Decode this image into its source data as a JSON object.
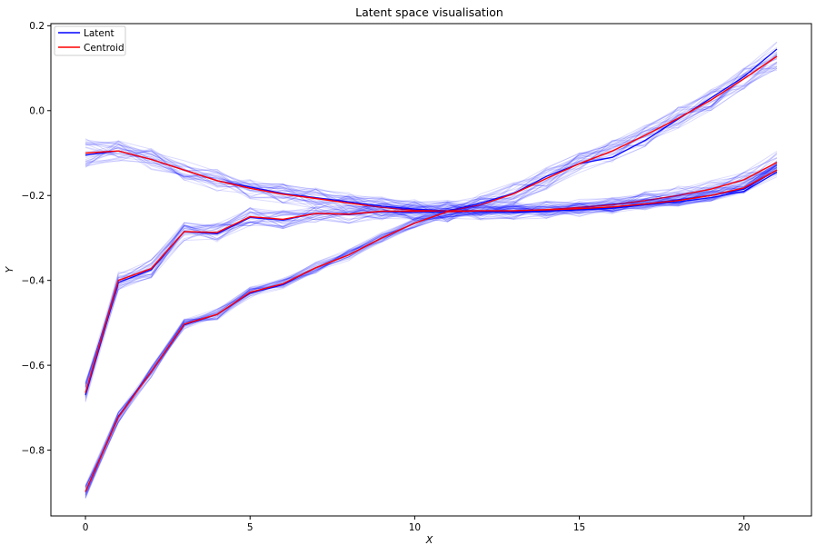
{
  "chart_data": {
    "type": "line",
    "title": "Latent space visualisation",
    "xlabel": "X",
    "ylabel": "Y",
    "xlim": [
      -1.05,
      22.05
    ],
    "ylim": [
      -0.955,
      0.205
    ],
    "xticks": [
      0,
      5,
      10,
      15,
      20
    ],
    "yticks": [
      -0.8,
      -0.6,
      -0.4,
      -0.2,
      0.0,
      0.2
    ],
    "ytick_labels": [
      "−0.8",
      "−0.6",
      "−0.4",
      "−0.2",
      "0.0",
      "0.2"
    ],
    "grid": false,
    "legend_position": "top-left",
    "colors": {
      "latent": "#0000ff",
      "centroid": "#ff0000"
    },
    "x": [
      0,
      1,
      2,
      3,
      4,
      5,
      6,
      7,
      8,
      9,
      10,
      11,
      12,
      13,
      14,
      15,
      16,
      17,
      18,
      19,
      20,
      21
    ],
    "series": [
      {
        "name": "Latent",
        "values": [
          -0.105,
          -0.095,
          -0.115,
          -0.14,
          -0.165,
          -0.18,
          -0.195,
          -0.205,
          -0.215,
          -0.225,
          -0.232,
          -0.236,
          -0.218,
          -0.195,
          -0.155,
          -0.125,
          -0.11,
          -0.07,
          -0.02,
          0.03,
          0.08,
          0.145
        ]
      },
      {
        "name": "Centroid",
        "values": [
          -0.1,
          -0.095,
          -0.115,
          -0.14,
          -0.165,
          -0.183,
          -0.197,
          -0.207,
          -0.218,
          -0.228,
          -0.235,
          -0.237,
          -0.222,
          -0.196,
          -0.16,
          -0.125,
          -0.095,
          -0.058,
          -0.018,
          0.025,
          0.075,
          0.128
        ]
      }
    ],
    "bundles": [
      {
        "latent": [
          -0.105,
          -0.095,
          -0.115,
          -0.14,
          -0.165,
          -0.18,
          -0.195,
          -0.205,
          -0.215,
          -0.225,
          -0.232,
          -0.236,
          -0.218,
          -0.195,
          -0.155,
          -0.125,
          -0.11,
          -0.07,
          -0.02,
          0.03,
          0.08,
          0.145
        ],
        "centroid": [
          -0.1,
          -0.095,
          -0.115,
          -0.14,
          -0.165,
          -0.183,
          -0.197,
          -0.207,
          -0.218,
          -0.228,
          -0.235,
          -0.237,
          -0.222,
          -0.196,
          -0.16,
          -0.125,
          -0.095,
          -0.058,
          -0.018,
          0.025,
          0.075,
          0.128
        ],
        "spread": 0.012
      },
      {
        "latent": [
          -0.67,
          -0.405,
          -0.375,
          -0.285,
          -0.29,
          -0.252,
          -0.258,
          -0.242,
          -0.245,
          -0.238,
          -0.24,
          -0.238,
          -0.238,
          -0.24,
          -0.237,
          -0.232,
          -0.228,
          -0.22,
          -0.21,
          -0.2,
          -0.185,
          -0.14
        ],
        "centroid": [
          -0.665,
          -0.4,
          -0.372,
          -0.285,
          -0.287,
          -0.25,
          -0.256,
          -0.242,
          -0.244,
          -0.237,
          -0.237,
          -0.236,
          -0.236,
          -0.236,
          -0.233,
          -0.228,
          -0.222,
          -0.212,
          -0.2,
          -0.185,
          -0.163,
          -0.122
        ],
        "spread": 0.01
      },
      {
        "latent": [
          -0.898,
          -0.72,
          -0.615,
          -0.505,
          -0.48,
          -0.43,
          -0.41,
          -0.37,
          -0.34,
          -0.3,
          -0.265,
          -0.238,
          -0.237,
          -0.238,
          -0.236,
          -0.234,
          -0.23,
          -0.222,
          -0.215,
          -0.205,
          -0.19,
          -0.145
        ],
        "centroid": [
          -0.898,
          -0.722,
          -0.615,
          -0.503,
          -0.48,
          -0.428,
          -0.408,
          -0.37,
          -0.34,
          -0.3,
          -0.265,
          -0.238,
          -0.236,
          -0.236,
          -0.234,
          -0.231,
          -0.227,
          -0.22,
          -0.212,
          -0.2,
          -0.182,
          -0.14
        ],
        "spread": 0.006
      }
    ],
    "legend": [
      {
        "label": "Latent",
        "color": "#0000ff"
      },
      {
        "label": "Centroid",
        "color": "#ff0000"
      }
    ]
  }
}
